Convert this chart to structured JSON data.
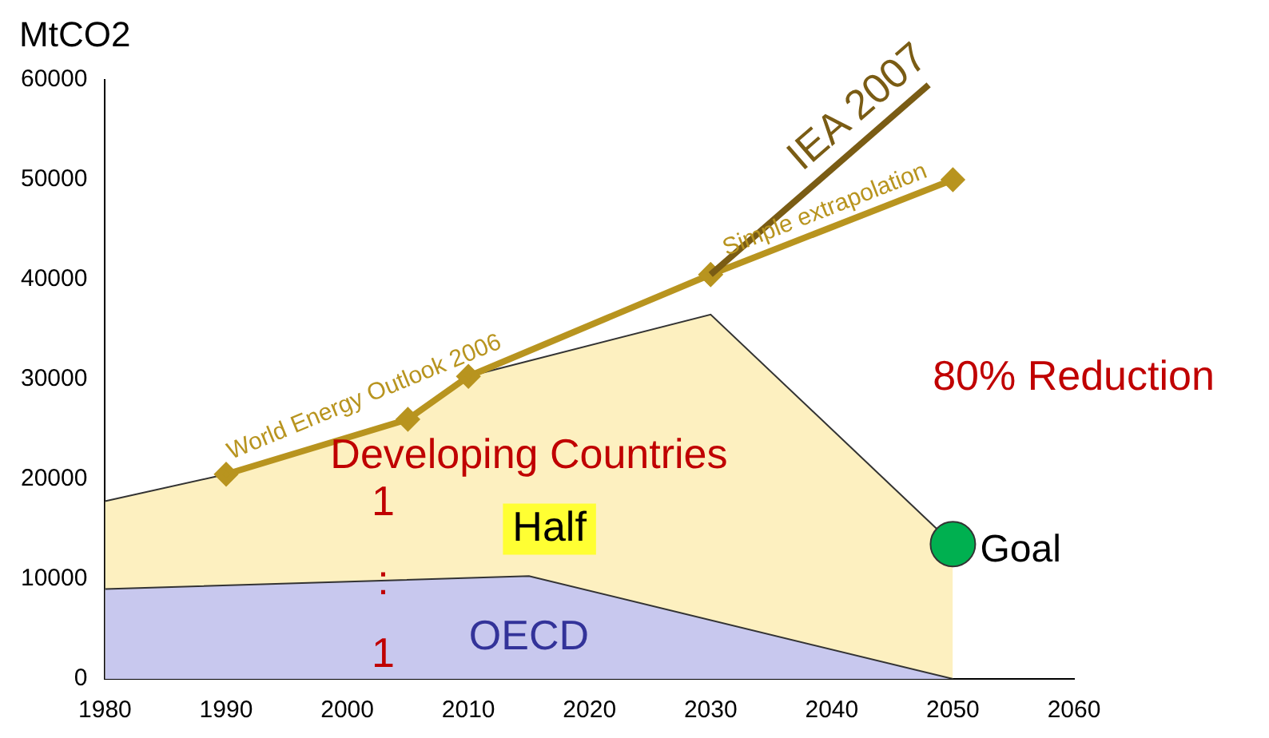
{
  "chart_data": {
    "type": "line",
    "ylabel": "MtCO2",
    "xlim": [
      1980,
      2060
    ],
    "ylim": [
      0,
      60000
    ],
    "xticks": [
      1980,
      1990,
      2000,
      2010,
      2020,
      2030,
      2040,
      2050,
      2060
    ],
    "yticks": [
      0,
      10000,
      20000,
      30000,
      40000,
      50000,
      60000
    ],
    "grid": false,
    "legend": false,
    "marker": "diamond",
    "series": [
      {
        "name": "OECD",
        "type": "area",
        "marker": "none",
        "color": "#c8c8ee",
        "x": [
          1980,
          2015,
          2050
        ],
        "values": [
          9000,
          10300,
          0
        ]
      },
      {
        "name": "Developing Countries",
        "type": "area",
        "marker": "none",
        "color": "#fdf0c0",
        "x": [
          1980,
          1990,
          2005,
          2010,
          2030,
          2050
        ],
        "values": [
          17800,
          20500,
          26000,
          30300,
          36500,
          13500
        ]
      },
      {
        "name": "World Energy Outlook 2006",
        "color": "#b8941f",
        "x": [
          1990,
          2005,
          2010,
          2030
        ],
        "values": [
          20500,
          26000,
          30300,
          40500
        ]
      },
      {
        "name": "Simple extrapolation",
        "type": "line",
        "color": "#b8941f",
        "x": [
          2030,
          2050
        ],
        "values": [
          40500,
          50000
        ]
      },
      {
        "name": "IEA 2007",
        "type": "line",
        "marker": "none",
        "color": "#7a5c14",
        "x": [
          2030,
          2048
        ],
        "values": [
          40500,
          59500
        ]
      },
      {
        "name": "Goal",
        "type": "scatter",
        "marker": "circle",
        "color": "#00b050",
        "x": [
          2050
        ],
        "values": [
          13500
        ]
      }
    ],
    "annotations": [
      "80% Reduction",
      "Half",
      "1",
      ":",
      "1"
    ]
  }
}
